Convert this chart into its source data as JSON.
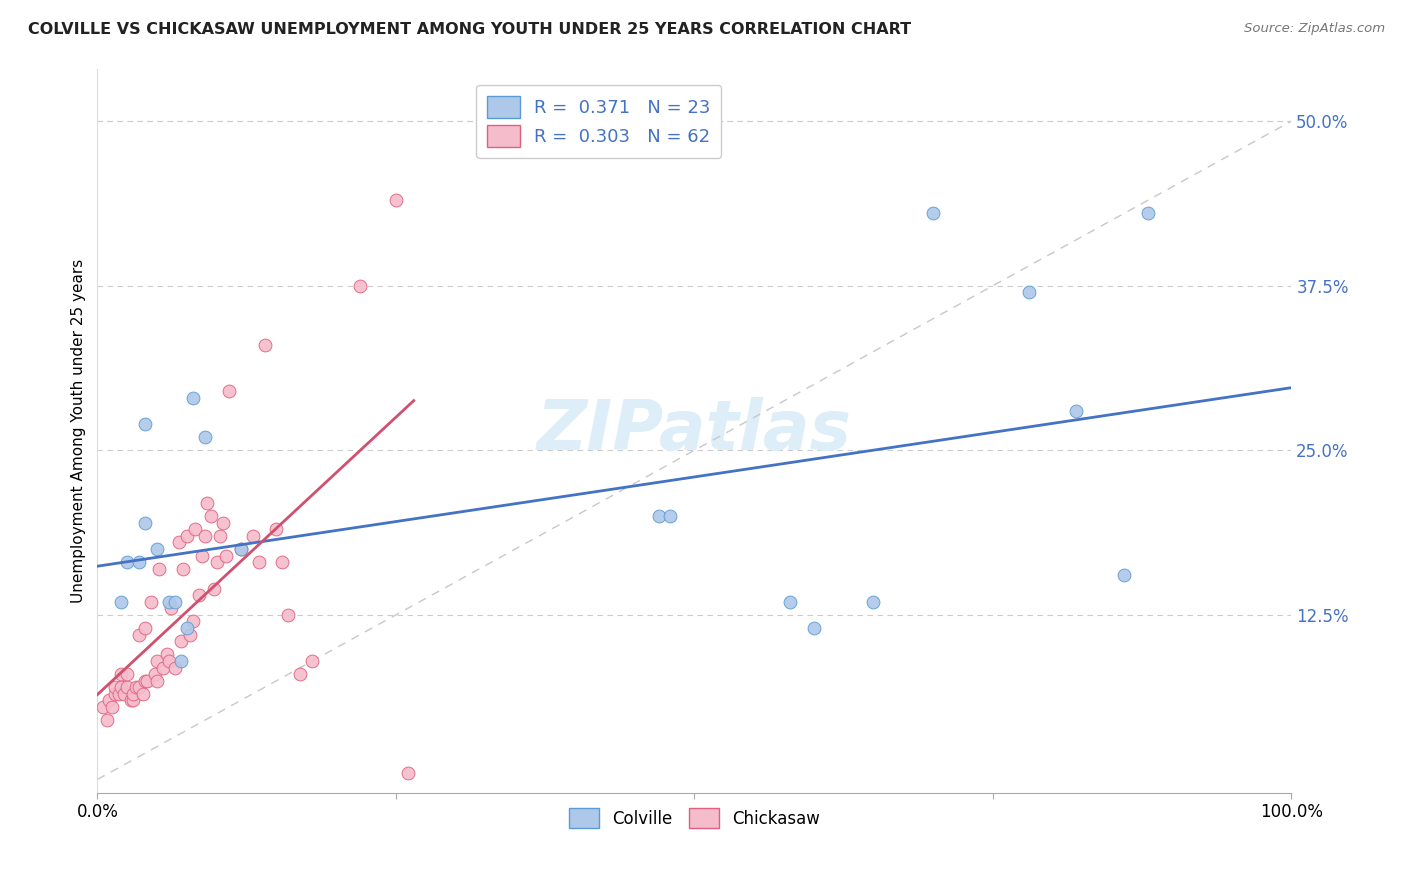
{
  "title": "COLVILLE VS CHICKASAW UNEMPLOYMENT AMONG YOUTH UNDER 25 YEARS CORRELATION CHART",
  "source": "Source: ZipAtlas.com",
  "ylabel": "Unemployment Among Youth under 25 years",
  "colville_R": 0.371,
  "colville_N": 23,
  "chickasaw_R": 0.303,
  "chickasaw_N": 62,
  "colville_color": "#adc8e8",
  "chickasaw_color": "#f5bccb",
  "colville_edge_color": "#5b9bd5",
  "chickasaw_edge_color": "#e06080",
  "colville_line_color": "#4472c4",
  "chickasaw_line_color": "#d05070",
  "ref_line_color": "#c8c8c8",
  "background_color": "#ffffff",
  "grid_color": "#cccccc",
  "watermark_color": "#ddeef8",
  "ytick_color": "#4472c4",
  "xlim": [
    0.0,
    1.0
  ],
  "ylim": [
    -0.01,
    0.54
  ],
  "colville_x": [
    0.02,
    0.025,
    0.035,
    0.04,
    0.04,
    0.05,
    0.06,
    0.065,
    0.07,
    0.075,
    0.08,
    0.09,
    0.12,
    0.47,
    0.48,
    0.58,
    0.6,
    0.65,
    0.7,
    0.78,
    0.82,
    0.86,
    0.88
  ],
  "colville_y": [
    0.135,
    0.165,
    0.165,
    0.195,
    0.27,
    0.175,
    0.135,
    0.135,
    0.09,
    0.115,
    0.29,
    0.26,
    0.175,
    0.2,
    0.2,
    0.135,
    0.115,
    0.135,
    0.43,
    0.37,
    0.28,
    0.155,
    0.43
  ],
  "chickasaw_x": [
    0.005,
    0.008,
    0.01,
    0.012,
    0.015,
    0.015,
    0.018,
    0.02,
    0.02,
    0.022,
    0.025,
    0.025,
    0.028,
    0.03,
    0.03,
    0.032,
    0.035,
    0.035,
    0.038,
    0.04,
    0.04,
    0.042,
    0.045,
    0.048,
    0.05,
    0.05,
    0.052,
    0.055,
    0.058,
    0.06,
    0.062,
    0.065,
    0.068,
    0.07,
    0.072,
    0.075,
    0.078,
    0.08,
    0.082,
    0.085,
    0.088,
    0.09,
    0.092,
    0.095,
    0.098,
    0.1,
    0.103,
    0.105,
    0.108,
    0.11,
    0.12,
    0.13,
    0.135,
    0.14,
    0.15,
    0.155,
    0.16,
    0.17,
    0.18,
    0.22,
    0.25,
    0.26
  ],
  "chickasaw_y": [
    0.055,
    0.045,
    0.06,
    0.055,
    0.065,
    0.07,
    0.065,
    0.07,
    0.08,
    0.065,
    0.07,
    0.08,
    0.06,
    0.06,
    0.065,
    0.07,
    0.07,
    0.11,
    0.065,
    0.075,
    0.115,
    0.075,
    0.135,
    0.08,
    0.075,
    0.09,
    0.16,
    0.085,
    0.095,
    0.09,
    0.13,
    0.085,
    0.18,
    0.105,
    0.16,
    0.185,
    0.11,
    0.12,
    0.19,
    0.14,
    0.17,
    0.185,
    0.21,
    0.2,
    0.145,
    0.165,
    0.185,
    0.195,
    0.17,
    0.295,
    0.175,
    0.185,
    0.165,
    0.33,
    0.19,
    0.165,
    0.125,
    0.08,
    0.09,
    0.375,
    0.44,
    0.005
  ]
}
